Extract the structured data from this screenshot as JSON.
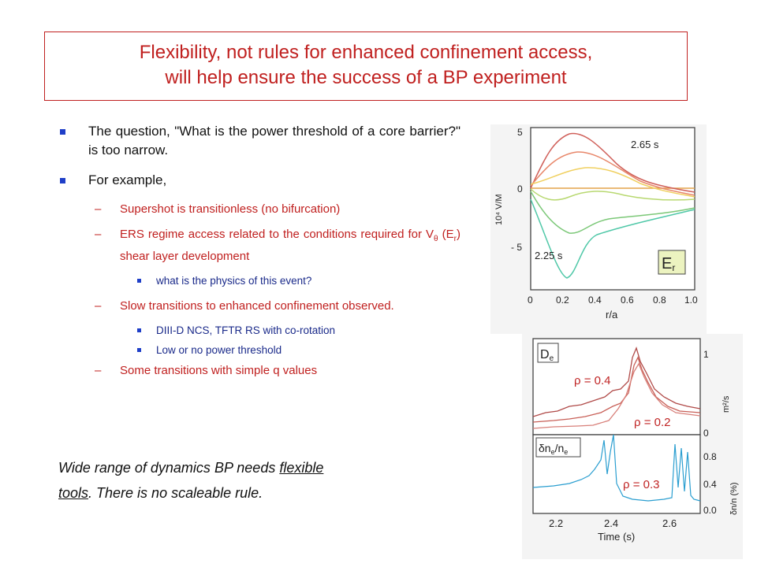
{
  "title": {
    "line1": "Flexibility, not rules for enhanced confinement access,",
    "line2": "will help ensure the success of a BP experiment"
  },
  "bullets": {
    "q": "The question, \"What is the power threshold of a core barrier?\" is too narrow.",
    "example": "For example,",
    "supershot": "Supershot is transitionless (no bifurcation)",
    "ers_a": "ERS regime access related to the conditions required for V",
    "ers_theta": "θ",
    "ers_b": " (E",
    "ers_r": "r",
    "ers_c": ") shear layer development",
    "physics": "what is the physics of this event?",
    "slow": "Slow transitions to enhanced confinement observed.",
    "diiid": "DIII-D NCS, TFTR RS with co-rotation",
    "lowpower": "Low or no power threshold",
    "simpleq": "Some transitions with simple q values",
    "dash": "–"
  },
  "footer": {
    "p1": "Wide range of dynamics ",
    "arrow": "",
    "p2": " BP needs ",
    "flexible": "flexible",
    "tools": "tools",
    "p3": ". There is no scaleable rule."
  },
  "fig1": {
    "ylabel": "10⁴ V/M",
    "yticks": [
      "5",
      "0",
      "- 5"
    ],
    "xticks": [
      "0",
      "0.2",
      "0.4",
      "0.6",
      "0.8",
      "1.0"
    ],
    "xlabel": "r/a",
    "t_top": "2.65 s",
    "t_bottom": "2.25 s",
    "er": "E",
    "er_sub": "r"
  },
  "fig2": {
    "de": "D",
    "de_sub": "e",
    "rho1": "ρ = 0.4",
    "rho2": "ρ = 0.2",
    "rho3": "ρ = 0.3",
    "dn": "δn",
    "dn_sub": "e",
    "dn_tail": "/n",
    "dn_sub2": "e",
    "ytop_label": "m²/s",
    "ybot_label": "δn/n (%)",
    "ytop_ticks": [
      "1",
      "0"
    ],
    "ybot_ticks": [
      "0.8",
      "0.4",
      "0.0"
    ],
    "xticks": [
      "2.2",
      "2.4",
      "2.6"
    ],
    "xlabel": "Time (s)"
  }
}
